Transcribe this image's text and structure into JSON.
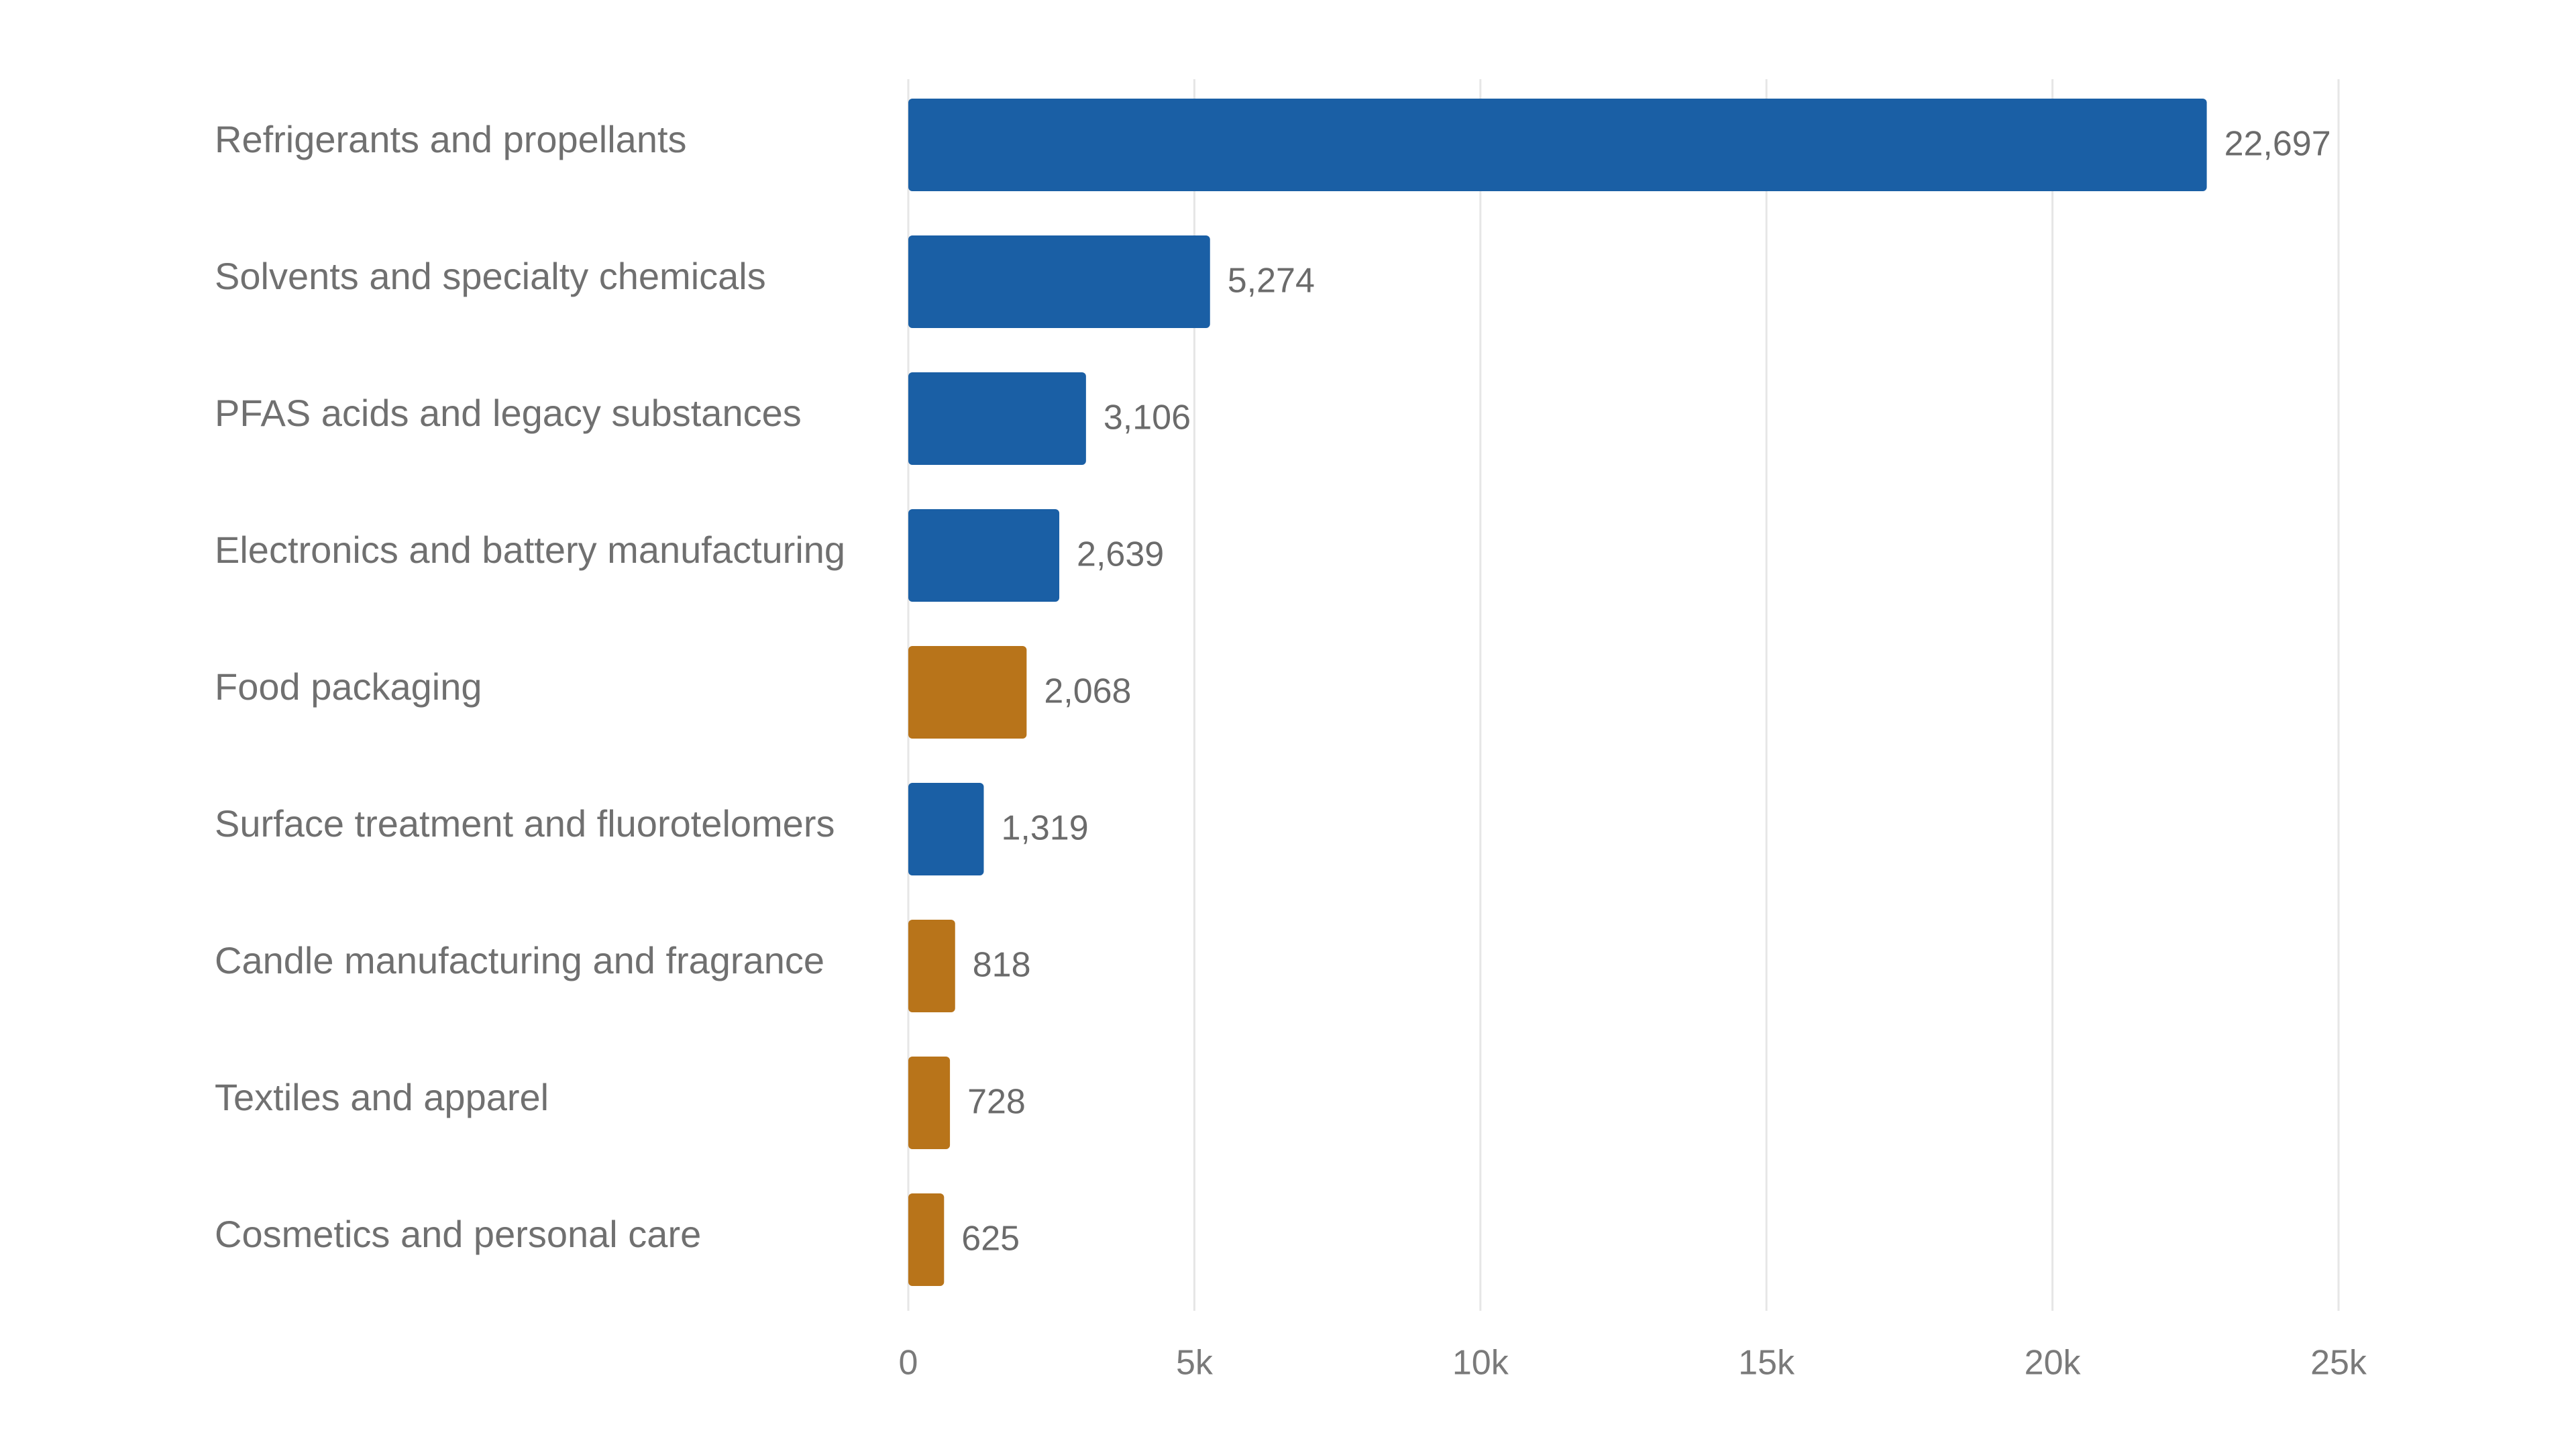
{
  "chart_data": {
    "type": "bar",
    "horizontal": true,
    "categories": [
      "Refrigerants and propellants",
      "Solvents and specialty chemicals",
      "PFAS acids and legacy substances",
      "Electronics and battery manufacturing",
      "Food packaging",
      "Surface treatment and fluorotelomers",
      "Candle manufacturing and fragrance",
      "Textiles and apparel",
      "Cosmetics and personal care"
    ],
    "values": [
      22697,
      5274,
      3106,
      2639,
      2068,
      1319,
      818,
      728,
      625
    ],
    "value_labels": [
      "22,697",
      "5,274",
      "3,106",
      "2,639",
      "2,068",
      "1,319",
      "818",
      "728",
      "625"
    ],
    "colors": [
      "#1a5fa5",
      "#1a5fa5",
      "#1a5fa5",
      "#1a5fa5",
      "#b8741a",
      "#1a5fa5",
      "#b8741a",
      "#b8741a",
      "#b8741a"
    ],
    "xlim": [
      0,
      25000
    ],
    "xticks": [
      0,
      {
        "value": 5000,
        "label": "5k"
      },
      {
        "value": 10000,
        "label": "10k"
      },
      {
        "value": 15000,
        "label": "15k"
      },
      {
        "value": 20000,
        "label": "20k"
      },
      {
        "value": 25000,
        "label": "25k"
      }
    ],
    "grid": true
  }
}
